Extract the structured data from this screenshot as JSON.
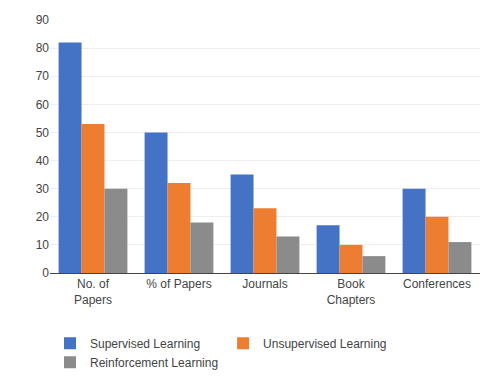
{
  "chart_data": {
    "type": "bar",
    "categories": [
      "No. of\nPapers",
      "% of Papers",
      "Journals",
      "Book\nChapters",
      "Conferences"
    ],
    "series": [
      {
        "name": "Supervised Learning",
        "color": "#4472C4",
        "values": [
          82,
          50,
          35,
          17,
          30
        ]
      },
      {
        "name": "Unsupervised Learning",
        "color": "#ED7D31",
        "values": [
          53,
          32,
          23,
          10,
          20
        ]
      },
      {
        "name": "Reinforcement Learning",
        "color": "#8B8B8B",
        "values": [
          30,
          18,
          13,
          6,
          11
        ]
      }
    ],
    "ylim": [
      0,
      90
    ],
    "yticks": [
      0,
      10,
      20,
      30,
      40,
      50,
      60,
      70,
      80,
      90
    ],
    "grid": true,
    "legend": "bottom"
  }
}
